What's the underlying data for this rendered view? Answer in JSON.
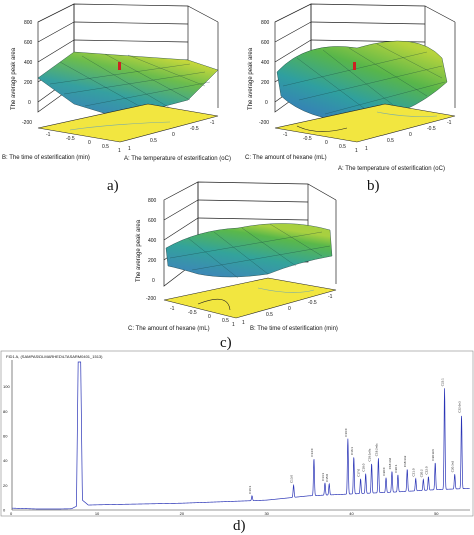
{
  "chart_data": [
    {
      "type": "surface",
      "panel_label": "a)",
      "zlabel": "The average peak area",
      "zticks": [
        "800",
        "600",
        "400",
        "200",
        "0",
        "-200"
      ],
      "xlabel": "A: The temperature of esterification (oC)",
      "ylabel": "B: The time of esterification (min)",
      "xticks": [
        "1",
        "0.5",
        "0",
        "-0.5",
        "-1"
      ],
      "yticks": [
        "-1",
        "-0.5",
        "0",
        "0.5",
        "1"
      ]
    },
    {
      "type": "surface",
      "panel_label": "b)",
      "zlabel": "The average peak area",
      "zticks": [
        "800",
        "600",
        "400",
        "200",
        "0",
        "-200"
      ],
      "xlabel": "A: The temperature of esterification (oC)",
      "ylabel": "C: The amount of hexane (mL)",
      "xticks": [
        "1",
        "0.5",
        "0",
        "-0.5",
        "-1"
      ],
      "yticks": [
        "-1",
        "-0.5",
        "0",
        "0.5",
        "1"
      ]
    },
    {
      "type": "surface",
      "panel_label": "c)",
      "zlabel": "The average peak area",
      "zticks": [
        "800",
        "600",
        "400",
        "200",
        "0",
        "-200"
      ],
      "xlabel": "B: The time of esterification (min)",
      "ylabel": "C: The amount of hexane (mL)",
      "xticks": [
        "1",
        "0.5",
        "0",
        "-0.5",
        "-1"
      ],
      "yticks": [
        "-1",
        "-0.5",
        "0",
        "0.5",
        "1"
      ]
    },
    {
      "type": "line",
      "panel_label": "d)",
      "header": "FID1 A, (SAMPAS\\DLMARHED\\LTASARM0401_1513)",
      "x_ticks": [
        0,
        10,
        20,
        30,
        40,
        50
      ],
      "y_ticks": [
        0,
        20,
        40,
        60,
        80,
        100
      ],
      "xlim": [
        0,
        54
      ],
      "ylim": [
        0,
        120
      ],
      "baseline": [
        [
          0,
          1.5
        ],
        [
          3,
          0.8
        ],
        [
          5.5,
          0.8
        ],
        [
          7,
          1
        ],
        [
          7.6,
          3
        ],
        [
          7.8,
          120
        ],
        [
          8.1,
          120
        ],
        [
          8.3,
          8
        ],
        [
          9,
          4
        ],
        [
          10,
          4.2
        ],
        [
          20,
          5.5
        ],
        [
          30,
          8
        ],
        [
          35,
          11.5
        ],
        [
          40,
          13
        ],
        [
          45,
          14.5
        ],
        [
          50,
          16.5
        ],
        [
          54,
          17.5
        ]
      ],
      "peaks": [
        {
          "x": 28.3,
          "height": 4,
          "label": "C16:1"
        },
        {
          "x": 33.2,
          "height": 10,
          "label": "C13:0"
        },
        {
          "x": 35.6,
          "height": 30,
          "label": "C14:0"
        },
        {
          "x": 36.9,
          "height": 10,
          "label": "C14:1"
        },
        {
          "x": 37.4,
          "height": 9,
          "label": "C15:0"
        },
        {
          "x": 39.6,
          "height": 45,
          "label": "C16:0"
        },
        {
          "x": 40.3,
          "height": 30,
          "label": "C16:1"
        },
        {
          "x": 41.1,
          "height": 12,
          "label": "C17:0"
        },
        {
          "x": 41.7,
          "height": 16,
          "label": "C18:0"
        },
        {
          "x": 42.4,
          "height": 24,
          "label": "C18:1n9c"
        },
        {
          "x": 43.2,
          "height": 28,
          "label": "C18:2n6c"
        },
        {
          "x": 44.1,
          "height": 12,
          "label": "C20:0"
        },
        {
          "x": 44.8,
          "height": 17,
          "label": "C18:3n6"
        },
        {
          "x": 45.5,
          "height": 14,
          "label": "C20:1"
        },
        {
          "x": 46.6,
          "height": 18,
          "label": "C18:3n3"
        },
        {
          "x": 47.6,
          "height": 10,
          "label": "C21:0"
        },
        {
          "x": 48.5,
          "height": 9,
          "label": "C20:2"
        },
        {
          "x": 49.1,
          "height": 11,
          "label": "C22:0"
        },
        {
          "x": 49.9,
          "height": 22,
          "label": "C20:3n6"
        },
        {
          "x": 51.0,
          "height": 82,
          "label": "C22:1"
        },
        {
          "x": 52.2,
          "height": 12,
          "label": "C20:3n3"
        },
        {
          "x": 53.0,
          "height": 60,
          "label": "C22:6n3"
        }
      ]
    }
  ]
}
